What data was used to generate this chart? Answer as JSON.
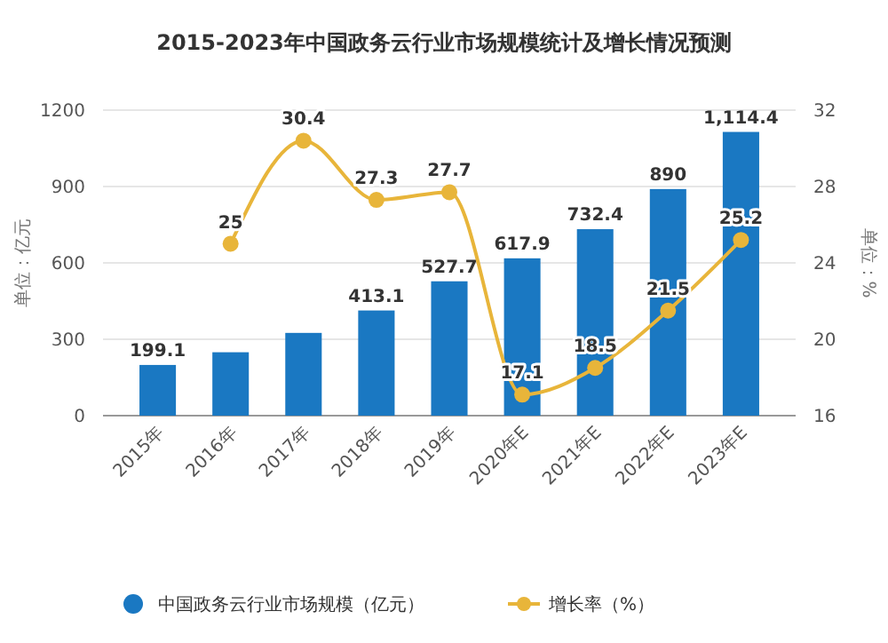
{
  "chart_data": {
    "type": "bar",
    "title": "2015-2023年中国政务云行业市场规模统计及增长情况预测",
    "categories": [
      "2015年",
      "2016年",
      "2017年",
      "2018年",
      "2019年",
      "2020年E",
      "2021年E",
      "2022年E",
      "2023年E"
    ],
    "series": [
      {
        "name": "中国政务云行业市场规模（亿元）",
        "color": "#1a78c2",
        "values": [
          199.1,
          249,
          325,
          413.1,
          527.7,
          617.9,
          732.4,
          890,
          1114.4
        ],
        "value_labels": [
          "199.1",
          null,
          null,
          "413.1",
          "527.7",
          "617.9",
          "732.4",
          "890",
          "1,114.4"
        ]
      },
      {
        "name": "增长率（%）",
        "type": "line",
        "axis": "y2",
        "color": "#e8b53a",
        "values": [
          null,
          25,
          30.4,
          27.3,
          27.7,
          17.1,
          18.5,
          21.5,
          25.2
        ],
        "value_labels": [
          null,
          "25",
          "30.4",
          "27.3",
          "27.7",
          "17.1",
          "18.5",
          "21.5",
          "25.2"
        ]
      }
    ],
    "ylabel": "单位：亿元",
    "y2label": "单位：%",
    "ylim": [
      0,
      1200
    ],
    "yticks": [
      0,
      300,
      600,
      900,
      1200
    ],
    "y2lim": [
      16,
      32
    ],
    "y2ticks": [
      16,
      20,
      24,
      28,
      32
    ],
    "grid": "y",
    "legend": "bottom",
    "marker": "circle"
  }
}
